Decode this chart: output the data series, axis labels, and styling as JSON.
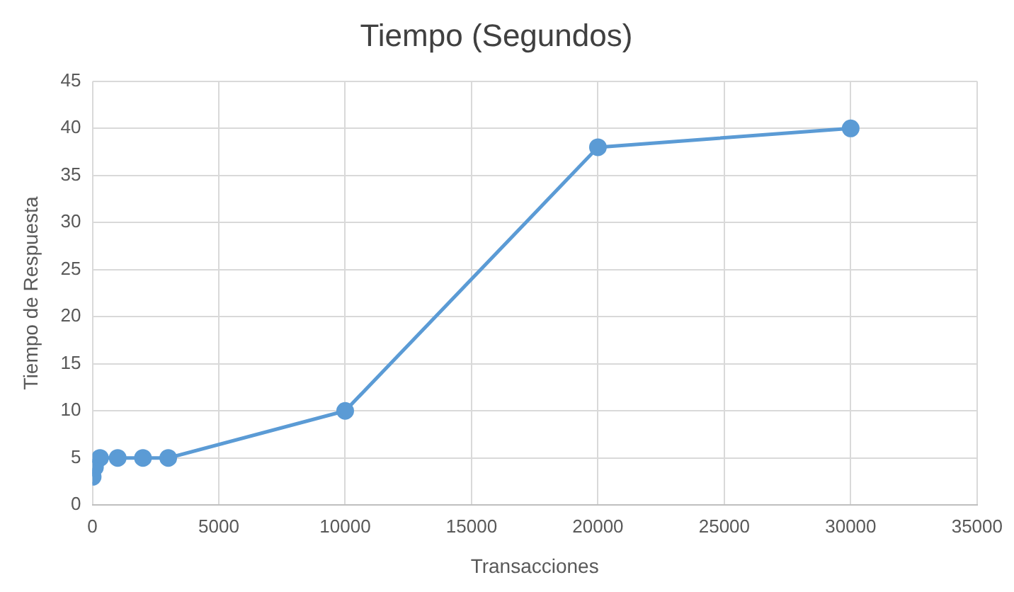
{
  "chart_data": {
    "type": "line",
    "title": "Tiempo (Segundos)",
    "xlabel": "Transacciones",
    "ylabel": "Tiempo de Respuesta",
    "x": [
      10,
      100,
      300,
      1000,
      2000,
      3000,
      10000,
      20000,
      30000
    ],
    "series": [
      {
        "color": "#5b9bd5",
        "values": [
          3,
          4,
          5,
          5,
          5,
          5,
          10,
          38,
          40
        ]
      }
    ],
    "xlim": [
      0,
      35000
    ],
    "xticks": [
      0,
      5000,
      10000,
      15000,
      20000,
      25000,
      30000,
      35000
    ],
    "ylim": [
      0,
      45
    ],
    "yticks": [
      0,
      5,
      10,
      15,
      20,
      25,
      30,
      35,
      40,
      45
    ],
    "grid": true,
    "legend": false,
    "marker": "circle",
    "line_style": "solid"
  }
}
